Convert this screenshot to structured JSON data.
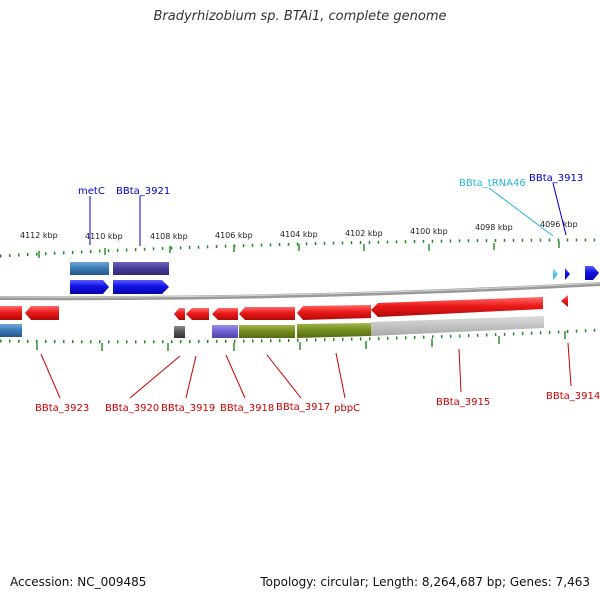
{
  "title": "Bradyrhizobium sp. BTAi1, complete genome",
  "footer": {
    "accession": "Accession: NC_009485",
    "topology": "Topology: circular; Length: 8,264,687 bp; Genes: 7,463"
  },
  "colors": {
    "forward_label": "#0000cc",
    "reverse_label": "#cc0000",
    "trna_label": "#22b5e0",
    "cds_red": "#e8131b",
    "cds_blue": "#1010e0",
    "rna_purple": "#4a3f9a",
    "rna_steel": "#3b7ab8",
    "tick": "#1f8a1f",
    "backbone": "#888888"
  },
  "kbp_ticks": [
    "4112 kbp",
    "4110 kbp",
    "4108 kbp",
    "4106 kbp",
    "4104 kbp",
    "4102 kbp",
    "4100 kbp",
    "4098 kbp",
    "4096 kbp"
  ],
  "forward_labels": [
    {
      "id": "metC",
      "text": "metC",
      "kind": "cds"
    },
    {
      "id": "bbta3921",
      "text": "BBta_3921",
      "kind": "cds"
    },
    {
      "id": "trna46",
      "text": "BBta_tRNA46",
      "kind": "trna"
    },
    {
      "id": "bbta3913",
      "text": "BBta_3913",
      "kind": "cds"
    }
  ],
  "reverse_labels": [
    {
      "id": "bbta3923",
      "text": "BBta_3923"
    },
    {
      "id": "bbta3920",
      "text": "BBta_3920"
    },
    {
      "id": "bbta3919",
      "text": "BBta_3919"
    },
    {
      "id": "bbta3918",
      "text": "BBta_3918"
    },
    {
      "id": "bbta3917",
      "text": "BBta_3917"
    },
    {
      "id": "pbpc",
      "text": "pbpC"
    },
    {
      "id": "bbta3915",
      "text": "BBta_3915"
    },
    {
      "id": "bbta3914",
      "text": "BBta_3914"
    }
  ]
}
